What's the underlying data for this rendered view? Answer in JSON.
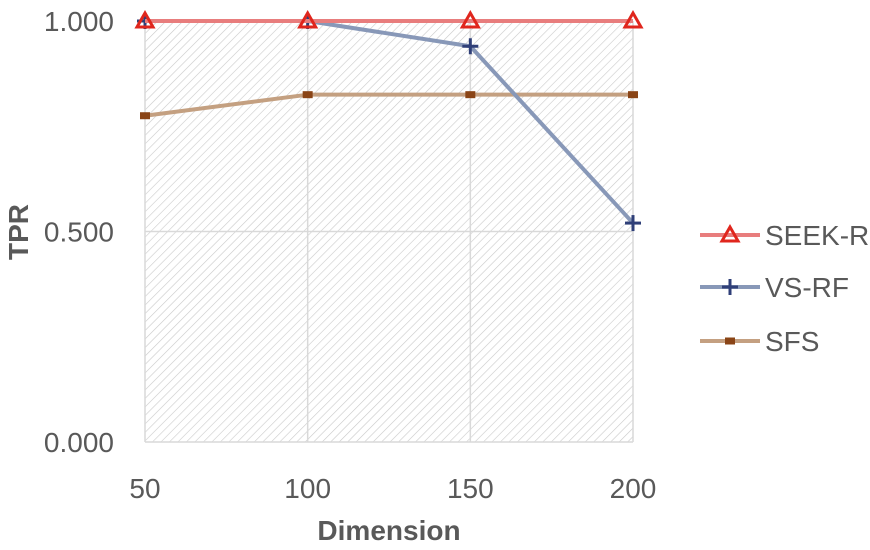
{
  "chart_data": {
    "type": "line",
    "title": "",
    "xlabel": "Dimension",
    "ylabel": "TPR",
    "x": [
      50,
      100,
      150,
      200
    ],
    "x_tick_labels": [
      "50",
      "100",
      "150",
      "200"
    ],
    "ylim": [
      0,
      1
    ],
    "y_ticks": [
      0,
      0.5,
      1
    ],
    "y_tick_labels": [
      "0.000",
      "0.500",
      "1.000"
    ],
    "grid": true,
    "legend_position": "right",
    "series": [
      {
        "name": "SEEK-RF",
        "values": [
          1.0,
          1.0,
          1.0,
          1.0
        ],
        "color": "#e87d7d",
        "marker": "triangle",
        "marker_color": "#e0261d"
      },
      {
        "name": "VS-RF",
        "values": [
          1.0,
          1.0,
          0.94,
          0.52
        ],
        "color": "#8898b8",
        "marker": "plus",
        "marker_color": "#2f3f78"
      },
      {
        "name": "SFS",
        "values": [
          0.775,
          0.825,
          0.825,
          0.825
        ],
        "color": "#c4a081",
        "marker": "square",
        "marker_color": "#8a4416"
      }
    ]
  }
}
